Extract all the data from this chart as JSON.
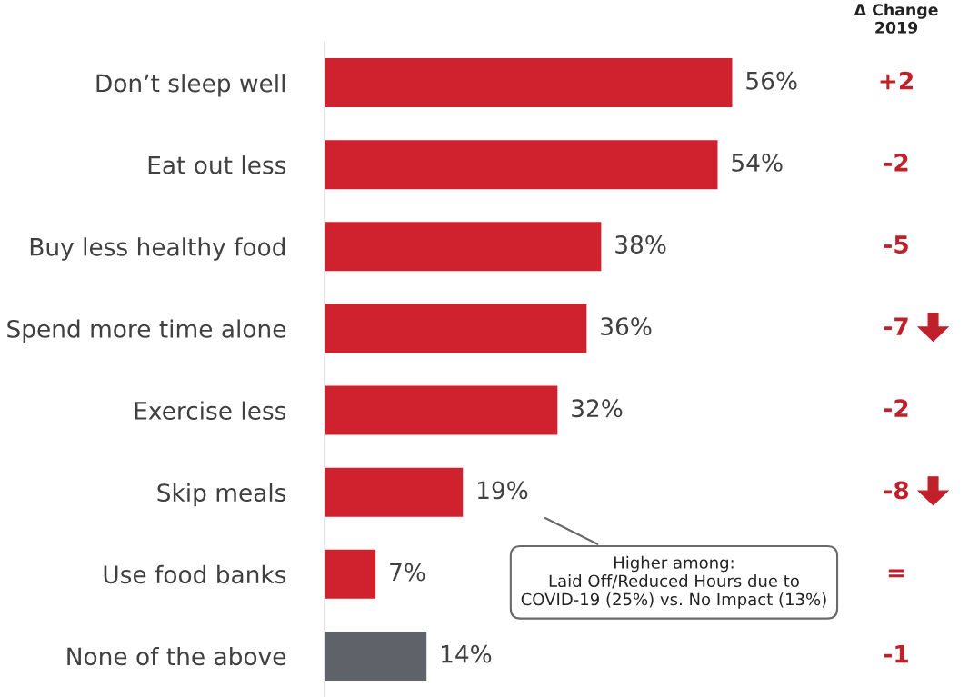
{
  "chart_data": {
    "type": "bar",
    "orientation": "horizontal",
    "categories": [
      "Don’t sleep well",
      "Eat out less",
      "Buy less healthy food",
      "Spend more time alone",
      "Exercise less",
      "Skip meals",
      "Use food banks",
      "None of the above"
    ],
    "values": [
      56,
      54,
      38,
      36,
      32,
      19,
      7,
      14
    ],
    "colors": [
      "#d0222e",
      "#d0222e",
      "#d0222e",
      "#d0222e",
      "#d0222e",
      "#d0222e",
      "#d0222e",
      "#5f6369"
    ],
    "value_labels": [
      "56%",
      "54%",
      "38%",
      "36%",
      "32%",
      "19%",
      "7%",
      "14%"
    ],
    "annotations": [
      "Δ Change\n2019",
      "+2",
      "-2",
      "-5",
      "-7",
      "-2",
      "-8",
      "=",
      "-1",
      "Higher among:\nLaid Off/Reduced Hours due to\nCOVID-19 (25%) vs. No Impact (13%)"
    ],
    "grid": false,
    "legend": false
  }
}
